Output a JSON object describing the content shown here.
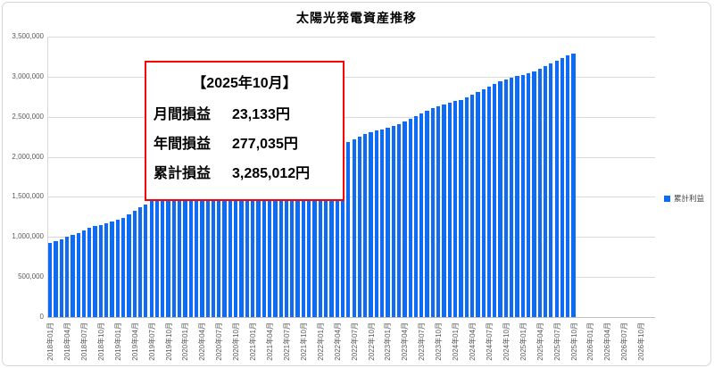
{
  "chart_title": "太陽光発電資産推移",
  "legend": {
    "label": "累計利益",
    "color": "#0d6bf5"
  },
  "annotation": {
    "heading": "【2025年10月】",
    "border_color": "#ff0000",
    "rows": [
      {
        "label": "月間損益",
        "value": "23,133円"
      },
      {
        "label": "年間損益",
        "value": "277,035円"
      },
      {
        "label": "累計損益",
        "value": "3,285,012円"
      }
    ]
  },
  "chart_data": {
    "type": "bar",
    "title": "太陽光発電資産推移",
    "xlabel": "",
    "ylabel": "",
    "ylim": [
      0,
      3500000
    ],
    "grid": true,
    "legend_position": "right",
    "bar_color": "#0d6bf5",
    "y_ticks": [
      0,
      500000,
      1000000,
      1500000,
      2000000,
      2500000,
      3000000,
      3500000
    ],
    "y_tick_labels": [
      "0",
      "500,000",
      "1,000,000",
      "1,500,000",
      "2,000,000",
      "2,500,000",
      "3,000,000",
      "3,500,000"
    ],
    "x_total_slots": 108,
    "x_tick_every": 3,
    "x_tick_labels": [
      "2018年01月",
      "2018年04月",
      "2018年07月",
      "2018年10月",
      "2019年01月",
      "2019年04月",
      "2019年07月",
      "2019年10月",
      "2020年01月",
      "2020年04月",
      "2020年07月",
      "2020年10月",
      "2021年01月",
      "2021年04月",
      "2021年07月",
      "2021年10月",
      "2022年01月",
      "2022年04月",
      "2022年07月",
      "2022年10月",
      "2023年01月",
      "2023年04月",
      "2023年07月",
      "2023年10月",
      "2024年01月",
      "2024年04月",
      "2024年07月",
      "2024年10月",
      "2025年01月",
      "2025年04月",
      "2025年07月",
      "2025年10月",
      "2026年01月",
      "2026年04月",
      "2026年07月",
      "2026年10月"
    ],
    "series": [
      {
        "name": "累計利益",
        "color": "#0d6bf5",
        "x": [
          "2018年01月",
          "2018年02月",
          "2018年03月",
          "2018年04月",
          "2018年05月",
          "2018年06月",
          "2018年07月",
          "2018年08月",
          "2018年09月",
          "2018年10月",
          "2018年11月",
          "2018年12月",
          "2019年01月",
          "2019年02月",
          "2019年03月",
          "2019年04月",
          "2019年05月",
          "2019年06月",
          "2019年07月",
          "2019年08月",
          "2019年09月",
          "2019年10月",
          "2019年11月",
          "2019年12月",
          "2020年01月",
          "2020年02月",
          "2020年03月",
          "2020年04月",
          "2020年05月",
          "2020年06月",
          "2020年07月",
          "2020年08月",
          "2020年09月",
          "2020年10月",
          "2020年11月",
          "2020年12月",
          "2021年01月",
          "2021年02月",
          "2021年03月",
          "2021年04月",
          "2021年05月",
          "2021年06月",
          "2021年07月",
          "2021年08月",
          "2021年09月",
          "2021年10月",
          "2021年11月",
          "2021年12月",
          "2022年01月",
          "2022年02月",
          "2022年03月",
          "2022年04月",
          "2022年05月",
          "2022年06月",
          "2022年07月",
          "2022年08月",
          "2022年09月",
          "2022年10月",
          "2022年11月",
          "2022年12月",
          "2023年01月",
          "2023年02月",
          "2023年03月",
          "2023年04月",
          "2023年05月",
          "2023年06月",
          "2023年07月",
          "2023年08月",
          "2023年09月",
          "2023年10月",
          "2023年11月",
          "2023年12月",
          "2024年01月",
          "2024年02月",
          "2024年03月",
          "2024年04月",
          "2024年05月",
          "2024年06月",
          "2024年07月",
          "2024年08月",
          "2024年09月",
          "2024年10月",
          "2024年11月",
          "2024年12月",
          "2025年01月",
          "2025年02月",
          "2025年03月",
          "2025年04月",
          "2025年05月",
          "2025年06月",
          "2025年07月",
          "2025年08月",
          "2025年09月",
          "2025年10月"
        ],
        "values": [
          930000,
          945000,
          973000,
          1000000,
          1028000,
          1048000,
          1085000,
          1111000,
          1133000,
          1151000,
          1170000,
          1190000,
          1213000,
          1239000,
          1279000,
          1323000,
          1368000,
          1410000,
          1448000,
          1481000,
          1505000,
          1523000,
          1537000,
          1550000,
          1562000,
          1576000,
          1596000,
          1620000,
          1646000,
          1668500,
          1694000,
          1718500,
          1740000,
          1758500,
          1774000,
          1790000,
          1802000,
          1816000,
          1836000,
          1859500,
          1885000,
          1907000,
          1932000,
          1956000,
          1977500,
          1996000,
          2011500,
          2025000,
          2041500,
          2060500,
          2088000,
          2120500,
          2155500,
          2186000,
          2220000,
          2253000,
          2282500,
          2307500,
          2328500,
          2345000,
          2362000,
          2382000,
          2410500,
          2443500,
          2479000,
          2510000,
          2544500,
          2578000,
          2608000,
          2633500,
          2655000,
          2675000,
          2692000,
          2711500,
          2739500,
          2773000,
          2809000,
          2840500,
          2875500,
          2909500,
          2940000,
          2966000,
          2988000,
          3007977,
          3023177,
          3040977,
          3067477,
          3099377,
          3133577,
          3163377,
          3196777,
          3229377,
          3261879,
          3285012
        ]
      }
    ]
  }
}
